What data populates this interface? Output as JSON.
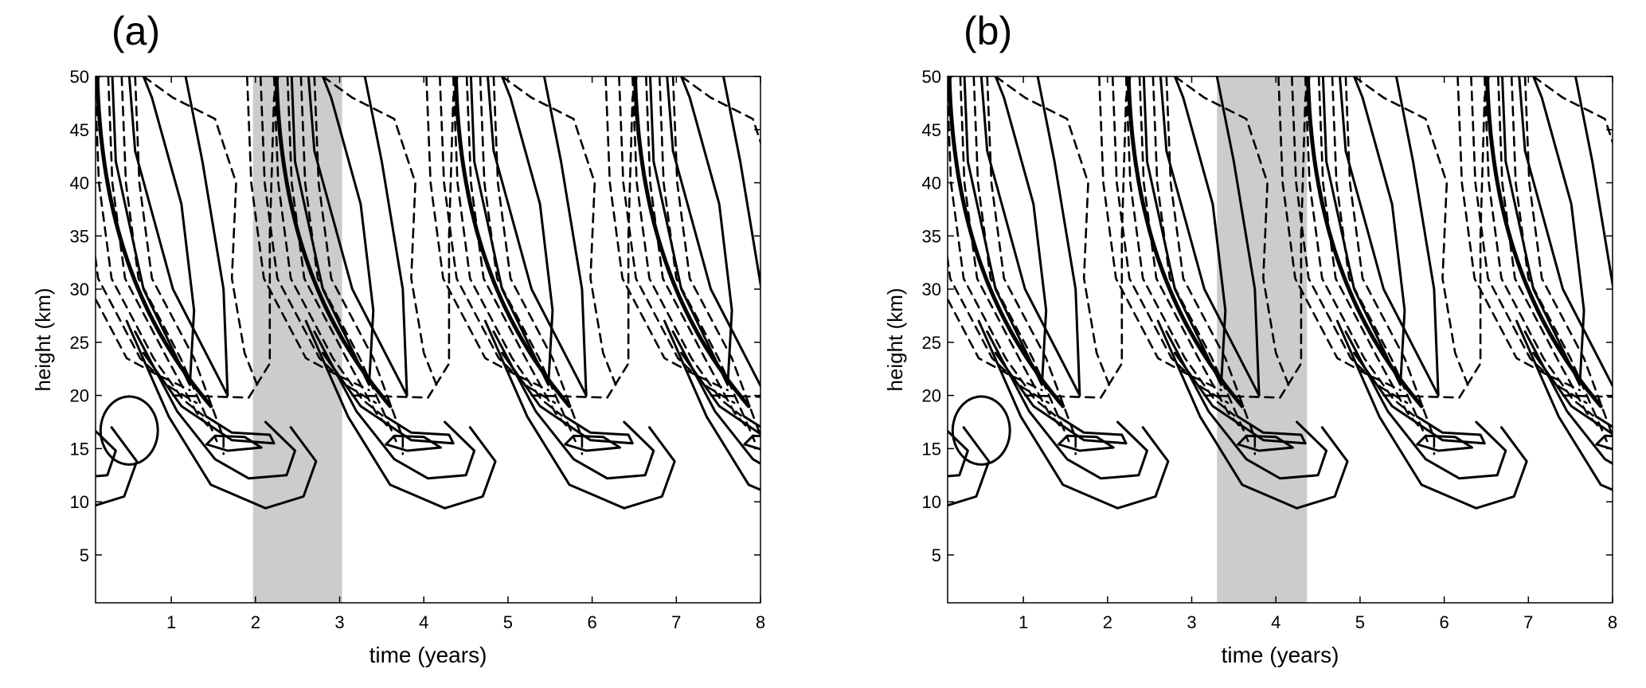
{
  "panels": [
    {
      "id": "a",
      "label": "(a)",
      "shade_range": [
        1.97,
        3.03
      ]
    },
    {
      "id": "b",
      "label": "(b)",
      "shade_range": [
        3.3,
        4.37
      ]
    }
  ],
  "chart_data": [
    {
      "type": "contour",
      "panel": "(a)",
      "xlabel": "time (years)",
      "ylabel": "height (km)",
      "xlim": [
        0.1,
        8
      ],
      "ylim": [
        0.5,
        50
      ],
      "xticks": [
        1,
        2,
        3,
        4,
        5,
        6,
        7,
        8
      ],
      "yticks": [
        5,
        10,
        15,
        20,
        25,
        30,
        35,
        40,
        45,
        50
      ],
      "grid": false,
      "legend": "none",
      "line_styles": [
        "solid",
        "dashed"
      ],
      "line_color": "#000000",
      "shade_color": "#cccccc",
      "shaded_interval": [
        1.97,
        3.03
      ]
    },
    {
      "type": "contour",
      "panel": "(b)",
      "xlabel": "time (years)",
      "ylabel": "height (km)",
      "xlim": [
        0.1,
        8
      ],
      "ylim": [
        0.5,
        50
      ],
      "xticks": [
        1,
        2,
        3,
        4,
        5,
        6,
        7,
        8
      ],
      "yticks": [
        5,
        10,
        15,
        20,
        25,
        30,
        35,
        40,
        45,
        50
      ],
      "grid": false,
      "legend": "none",
      "line_styles": [
        "solid",
        "dashed"
      ],
      "line_color": "#000000",
      "shade_color": "#cccccc",
      "shaded_interval": [
        3.3,
        4.37
      ]
    }
  ]
}
